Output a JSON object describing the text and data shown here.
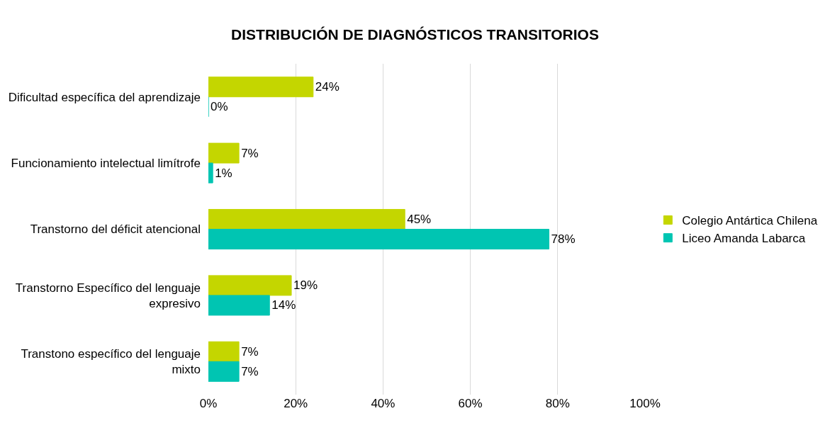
{
  "chart_data": {
    "type": "bar",
    "orientation": "horizontal",
    "title": "DISTRIBUCIÓN DE DIAGNÓSTICOS TRANSITORIOS",
    "categories": [
      "Dificultad específica del aprendizaje",
      "Funcionamiento intelectual limítrofe",
      "Transtorno del déficit atencional",
      "Transtorno Específico del lenguaje expresivo",
      "Transtono específico del lenguaje mixto"
    ],
    "series": [
      {
        "name": "Colegio Antártica Chilena",
        "color": "#c4d600",
        "values": [
          24,
          7,
          45,
          19,
          7
        ],
        "value_labels": [
          "24%",
          "7%",
          "45%",
          "19%",
          "7%"
        ]
      },
      {
        "name": "Liceo Amanda Labarca",
        "color": "#00c5b2",
        "values": [
          0,
          1,
          78,
          14,
          7
        ],
        "value_labels": [
          "0%",
          "1%",
          "78%",
          "14%",
          "7%"
        ]
      }
    ],
    "xlim": [
      0,
      100
    ],
    "xticks": [
      {
        "value": 0,
        "label": "0%"
      },
      {
        "value": 20,
        "label": "20%"
      },
      {
        "value": 40,
        "label": "40%"
      },
      {
        "value": 60,
        "label": "60%"
      },
      {
        "value": 80,
        "label": "80%"
      },
      {
        "value": 100,
        "label": "100%"
      }
    ],
    "grid": "x",
    "legend": "right"
  }
}
